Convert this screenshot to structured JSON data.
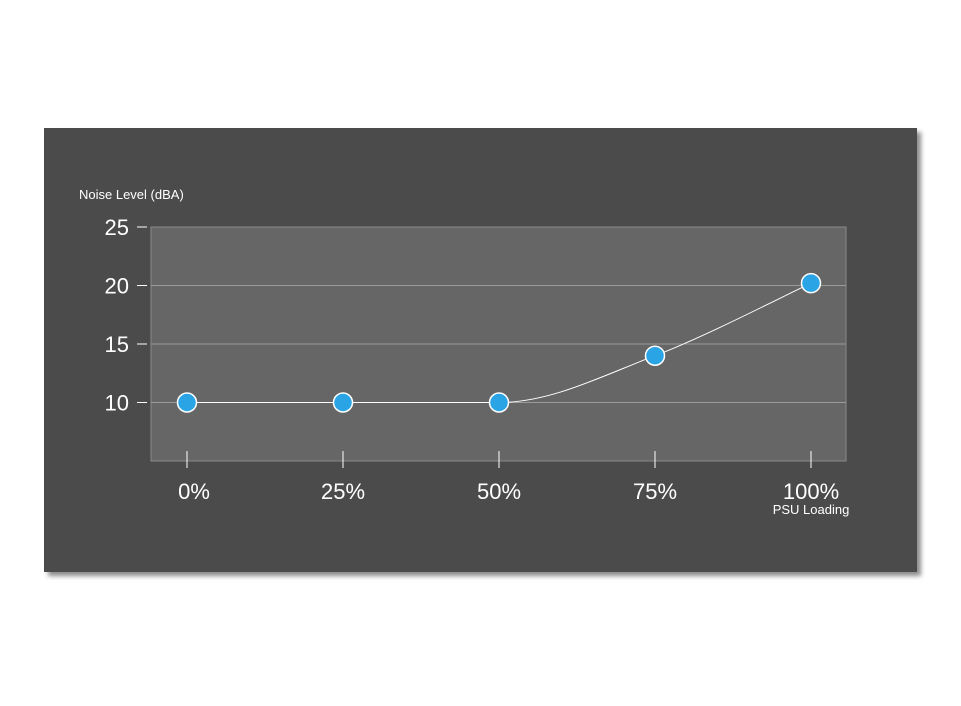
{
  "chart_data": {
    "type": "line",
    "xlabel": "PSU Loading",
    "ylabel": "Noise Level (dBA)",
    "categories": [
      "0%",
      "25%",
      "50%",
      "75%",
      "100%"
    ],
    "series": [
      {
        "values": [
          10,
          10,
          10,
          14,
          20.2
        ]
      }
    ],
    "ylim": [
      5,
      25
    ],
    "yticks": [
      10,
      15,
      20,
      25
    ],
    "grid": true,
    "legend": "none",
    "colors": {
      "panel": "#4c4c4c",
      "plot_area": "#666666",
      "gridline": "#9a9a9a",
      "line": "#ffffff",
      "marker": "#2aa4e4",
      "text": "#ffffff"
    }
  }
}
